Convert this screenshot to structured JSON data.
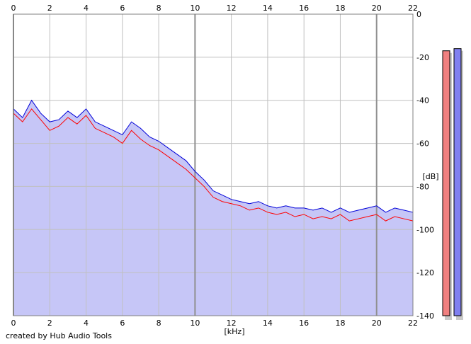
{
  "credit": "created by Hub Audio Tools",
  "chart_data": {
    "type": "area",
    "xlabel": "[kHz]",
    "ylabel": "[dB]",
    "xlim": [
      0,
      22
    ],
    "ylim": [
      -140,
      0
    ],
    "x_ticks": [
      0,
      2,
      4,
      6,
      8,
      10,
      12,
      14,
      16,
      18,
      20,
      22
    ],
    "y_ticks": [
      0,
      -20,
      -40,
      -60,
      -80,
      -100,
      -120,
      -140
    ],
    "grid": true,
    "colors": {
      "fill": "#c6c6f7",
      "series_1": "#ff0000",
      "series_2": "#0000d8",
      "grid": "#c0c0c0",
      "grid_major": "#909090"
    },
    "series": [
      {
        "color": "#ff0000",
        "x": [
          0,
          0.5,
          1,
          1.5,
          2,
          2.5,
          3,
          3.5,
          4,
          4.5,
          5,
          5.5,
          6,
          6.5,
          7,
          7.5,
          8,
          8.5,
          9,
          9.5,
          10,
          10.5,
          11,
          11.5,
          12,
          12.5,
          13,
          13.5,
          14,
          14.5,
          15,
          15.5,
          16,
          16.5,
          17,
          17.5,
          18,
          18.5,
          19,
          19.5,
          20,
          20.5,
          21,
          21.5,
          22
        ],
        "values": [
          -46,
          -50,
          -44,
          -49,
          -54,
          -52,
          -48,
          -51,
          -47,
          -53,
          -55,
          -57,
          -60,
          -54,
          -58,
          -61,
          -63,
          -66,
          -69,
          -72,
          -76,
          -80,
          -85,
          -87,
          -88,
          -89,
          -91,
          -90,
          -92,
          -93,
          -92,
          -94,
          -93,
          -95,
          -94,
          -95,
          -93,
          -96,
          -95,
          -94,
          -93,
          -96,
          -94,
          -95,
          -96
        ]
      },
      {
        "color": "#0000d8",
        "x": [
          0,
          0.5,
          1,
          1.5,
          2,
          2.5,
          3,
          3.5,
          4,
          4.5,
          5,
          5.5,
          6,
          6.5,
          7,
          7.5,
          8,
          8.5,
          9,
          9.5,
          10,
          10.5,
          11,
          11.5,
          12,
          12.5,
          13,
          13.5,
          14,
          14.5,
          15,
          15.5,
          16,
          16.5,
          17,
          17.5,
          18,
          18.5,
          19,
          19.5,
          20,
          20.5,
          21,
          21.5,
          22
        ],
        "values": [
          -44,
          -48,
          -40,
          -46,
          -50,
          -49,
          -45,
          -48,
          -44,
          -50,
          -52,
          -54,
          -56,
          -50,
          -53,
          -57,
          -59,
          -62,
          -65,
          -68,
          -73,
          -77,
          -82,
          -84,
          -86,
          -87,
          -88,
          -87,
          -89,
          -90,
          -89,
          -90,
          -90,
          -91,
          -90,
          -92,
          -90,
          -92,
          -91,
          -90,
          -89,
          -92,
          -90,
          -91,
          -92
        ]
      }
    ],
    "level_meters": [
      {
        "color": "#f08080",
        "value": -17
      },
      {
        "color": "#8080f0",
        "value": -16
      }
    ]
  }
}
